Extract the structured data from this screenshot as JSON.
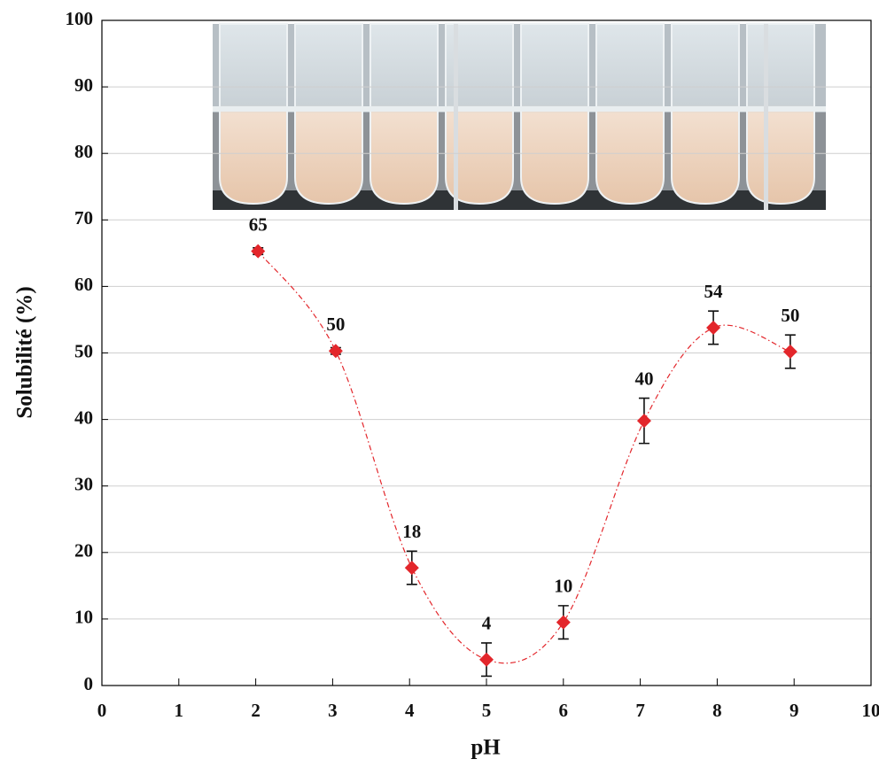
{
  "chart_data": {
    "type": "scatter",
    "x": [
      2.03,
      3.04,
      4.03,
      5.0,
      6.0,
      7.05,
      7.95,
      8.95
    ],
    "values": [
      65.3,
      50.3,
      17.7,
      3.9,
      9.5,
      39.8,
      53.8,
      50.2
    ],
    "errors": [
      0.5,
      0.5,
      2.5,
      2.5,
      2.5,
      3.4,
      2.5,
      2.5
    ],
    "value_labels": [
      "65",
      "50",
      "18",
      "4",
      "10",
      "40",
      "54",
      "50"
    ],
    "color": "#e3262b",
    "line_style": "dash-dot",
    "x_label": "pH",
    "y_label": "Solubilité (%)",
    "xlim": [
      0,
      10
    ],
    "xticks": [
      0,
      1,
      2,
      3,
      4,
      5,
      6,
      7,
      8,
      9,
      10
    ],
    "ylim": [
      0,
      100
    ],
    "yticks": [
      0,
      10,
      20,
      30,
      40,
      50,
      60,
      70,
      80,
      90,
      100
    ],
    "grid": true
  }
}
